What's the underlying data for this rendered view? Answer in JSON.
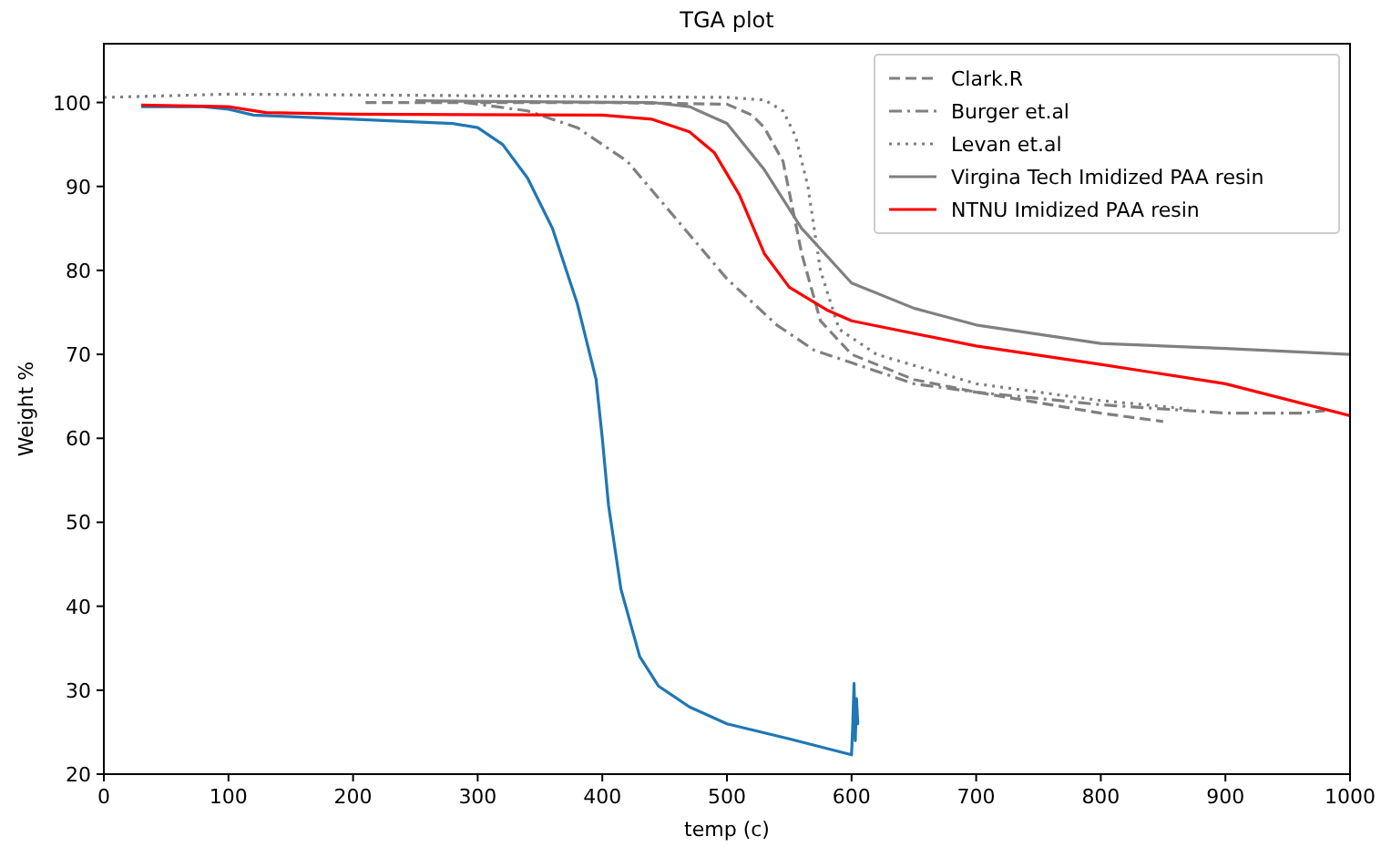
{
  "chart_data": {
    "type": "line",
    "title": "TGA plot",
    "xlabel": "temp (c)",
    "ylabel": "Weight %",
    "xlim": [
      0,
      1000
    ],
    "ylim": [
      20,
      107
    ],
    "xticks": [
      0,
      100,
      200,
      300,
      400,
      500,
      600,
      700,
      800,
      900,
      1000
    ],
    "yticks": [
      20,
      30,
      40,
      50,
      60,
      70,
      80,
      90,
      100
    ],
    "legend": "top right",
    "marker": "none",
    "series": [
      {
        "name": "Clark.R",
        "color": "#808080",
        "line_style": "dashed",
        "x": [
          210,
          300,
          400,
          500,
          520,
          530,
          545,
          560,
          575,
          600,
          650,
          700,
          800,
          850
        ],
        "values": [
          100,
          100,
          100,
          99.8,
          98.5,
          97,
          93,
          82,
          74,
          70,
          67,
          65.5,
          63,
          62
        ]
      },
      {
        "name": "Burger et.al",
        "color": "#808080",
        "line_style": "dashdot",
        "x": [
          290,
          340,
          380,
          420,
          460,
          500,
          540,
          570,
          600,
          650,
          700,
          800,
          900,
          960,
          980
        ],
        "values": [
          100,
          99,
          97,
          93,
          86,
          79,
          73.5,
          70.5,
          69,
          66.5,
          65.5,
          64,
          63,
          63,
          63.3
        ]
      },
      {
        "name": "Levan et.al",
        "color": "#808080",
        "line_style": "dotted",
        "x": [
          0,
          100,
          300,
          500,
          530,
          545,
          555,
          565,
          575,
          590,
          620,
          700,
          800,
          870
        ],
        "values": [
          100.6,
          101,
          100.8,
          100.6,
          100.3,
          99,
          96,
          90,
          80,
          73,
          70,
          66.5,
          64.5,
          63.5
        ]
      },
      {
        "name": "Virgina Tech Imidized PAA resin",
        "color": "#808080",
        "line_style": "solid",
        "x": [
          250,
          440,
          470,
          500,
          530,
          560,
          600,
          650,
          700,
          800,
          900,
          1000
        ],
        "values": [
          100.2,
          100,
          99.5,
          97.5,
          92,
          85,
          78.5,
          75.5,
          73.5,
          71.3,
          70.7,
          70
        ]
      },
      {
        "color": "#1f77b4",
        "line_style": "solid",
        "x": [
          30,
          80,
          100,
          120,
          200,
          280,
          300,
          320,
          340,
          360,
          380,
          395,
          400,
          405,
          415,
          430,
          445,
          470,
          500,
          550,
          600,
          601,
          602,
          603,
          604,
          605,
          603
        ],
        "values": [
          99.5,
          99.5,
          99.2,
          98.5,
          98,
          97.5,
          97,
          95,
          91,
          85,
          76,
          67,
          60,
          52,
          42,
          34,
          30.5,
          28,
          26,
          24.2,
          22.3,
          26,
          30.8,
          24,
          29,
          26,
          27
        ]
      },
      {
        "name": "NTNU Imidized PAA resin",
        "color": "#ff0000",
        "line_style": "solid",
        "x": [
          30,
          100,
          130,
          200,
          400,
          440,
          470,
          490,
          510,
          530,
          550,
          580,
          600,
          700,
          800,
          900,
          1000
        ],
        "values": [
          99.7,
          99.5,
          98.8,
          98.6,
          98.5,
          98,
          96.5,
          94,
          89,
          82,
          78,
          75.3,
          74,
          71,
          68.8,
          66.5,
          62.7
        ]
      }
    ]
  }
}
